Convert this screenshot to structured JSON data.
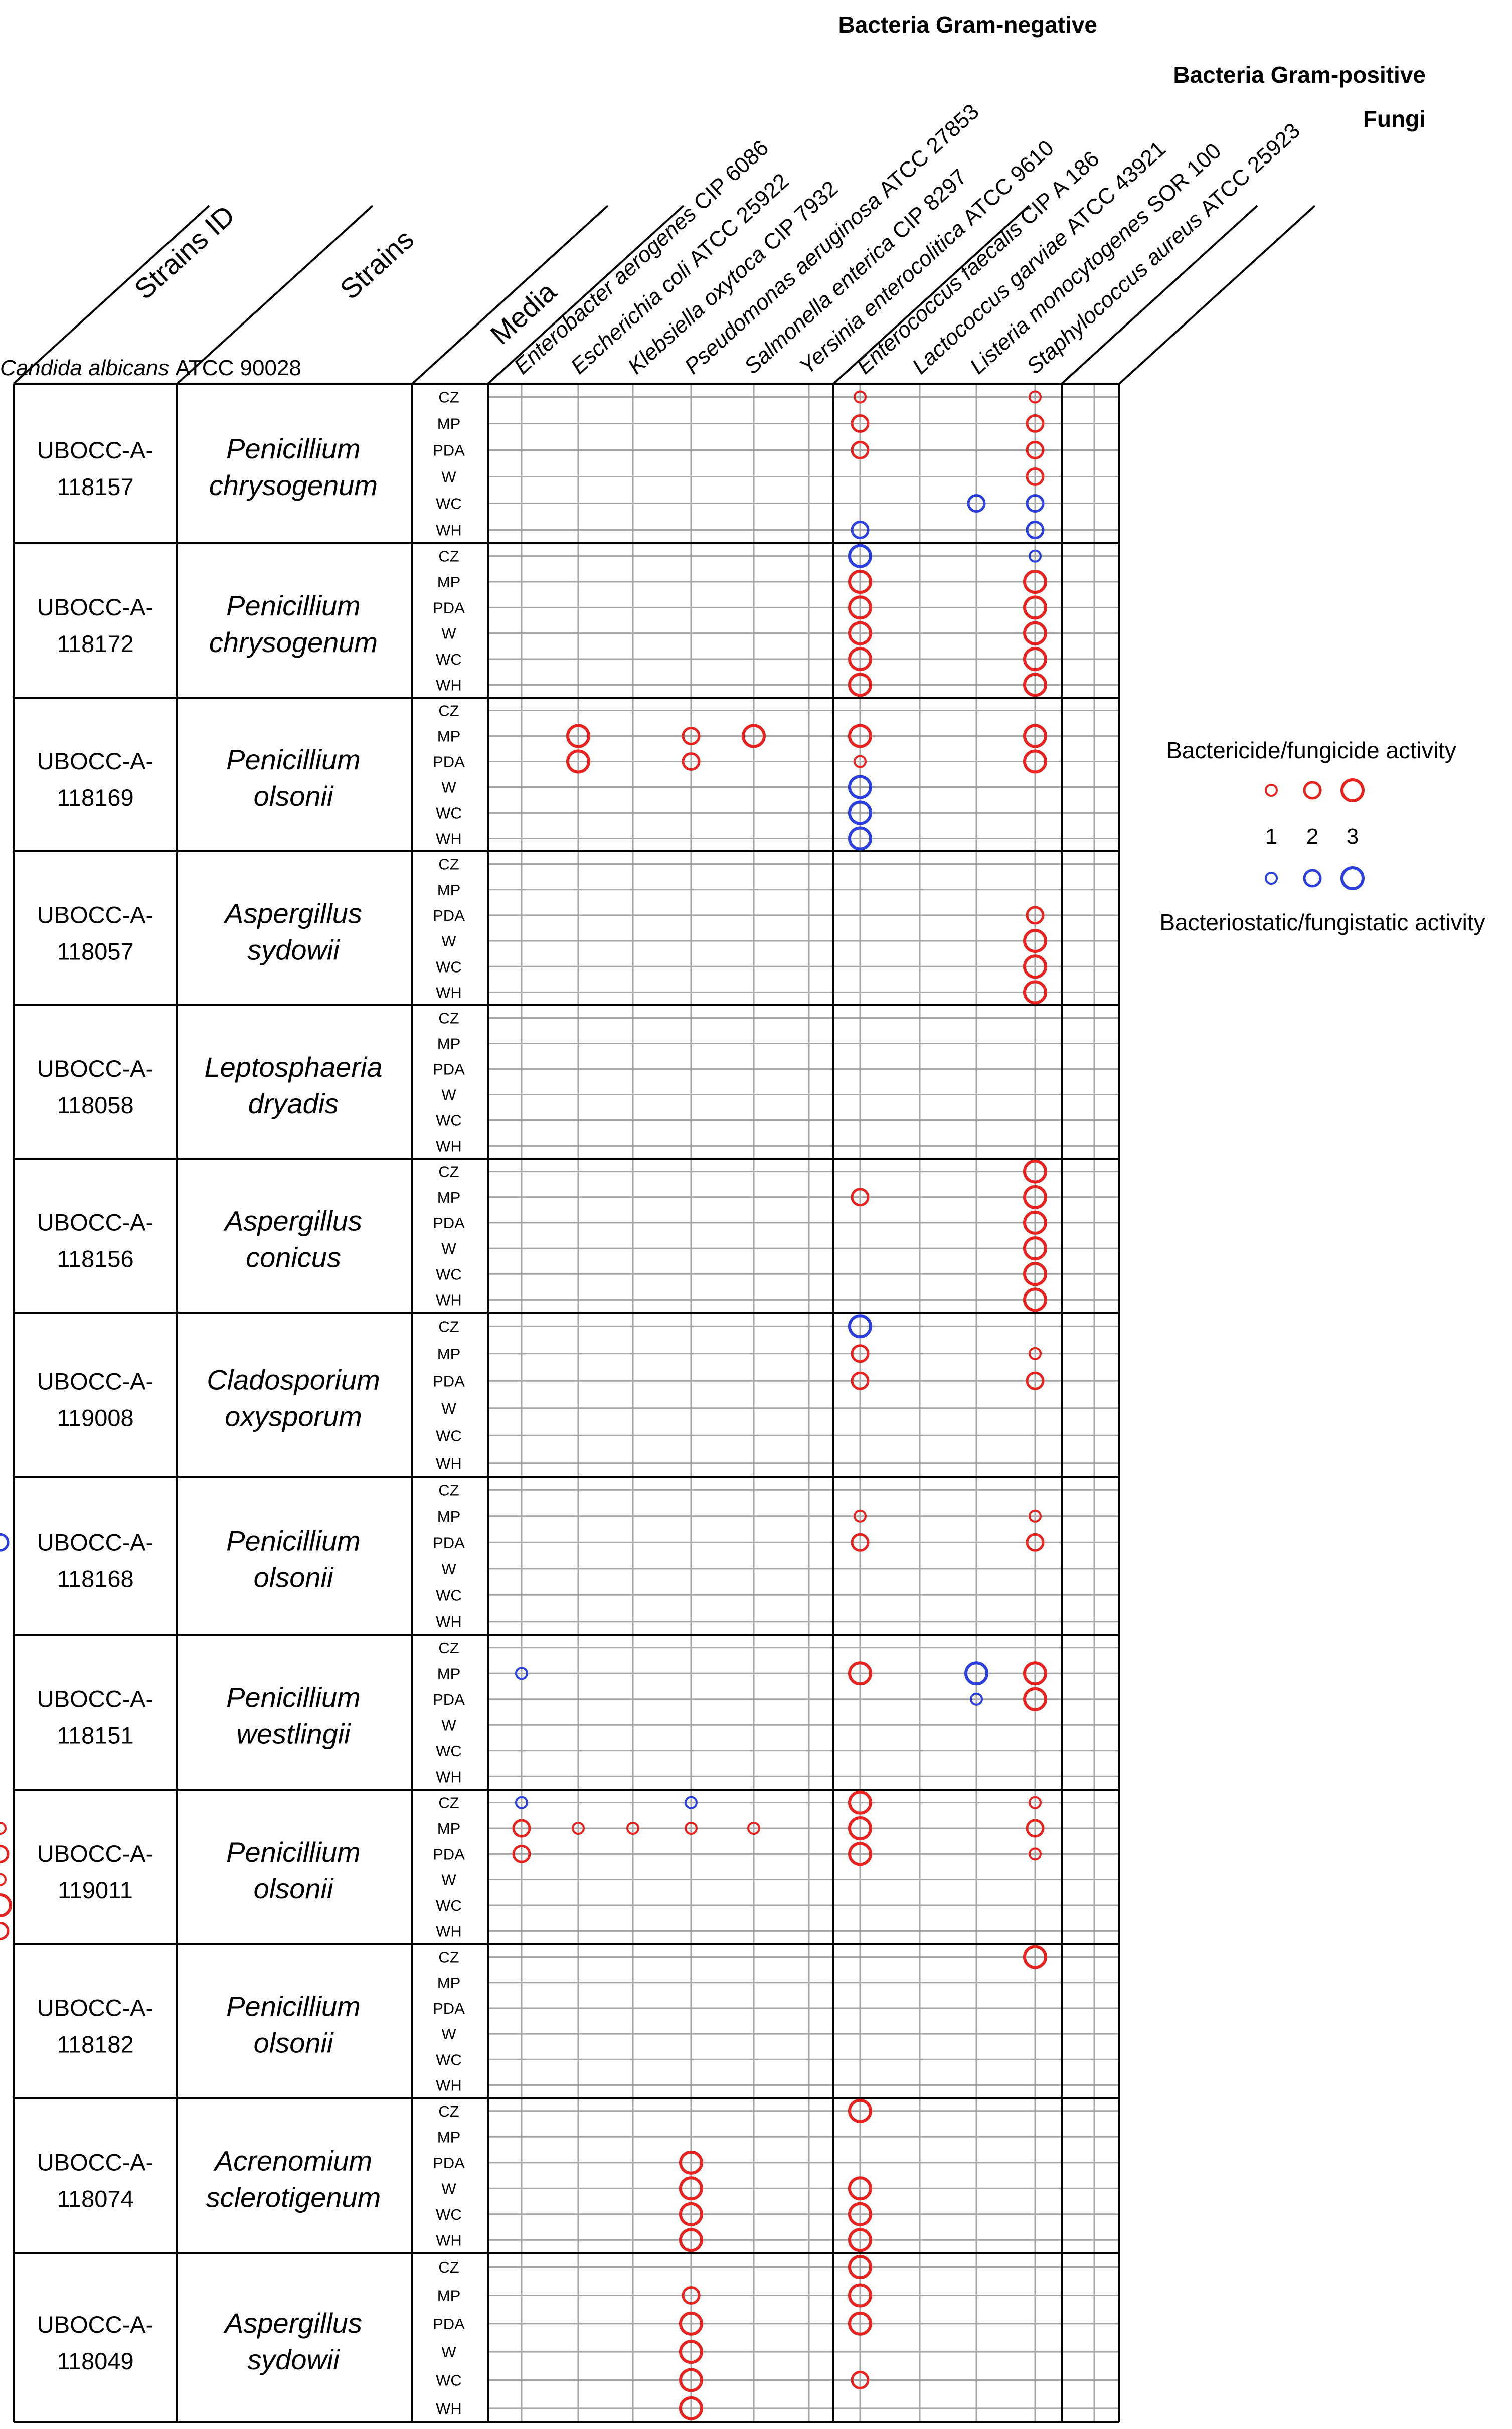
{
  "chart_data": {
    "type": "bubble-matrix",
    "groups": [
      {
        "label": "Bacteria Gram-negative",
        "columns": [
          0,
          1,
          2,
          3,
          4,
          5
        ]
      },
      {
        "label": "Bacteria Gram-positive",
        "columns": [
          6,
          7,
          8,
          9,
          10
        ]
      },
      {
        "label": "Fungi",
        "columns": [
          11
        ]
      }
    ],
    "header_labels": {
      "strain_id": "Strains ID",
      "strain": "Strains",
      "media": "Media"
    },
    "target_species": [
      {
        "genus": "Enterobacter aerogenes",
        "code": "CIP 6086"
      },
      {
        "genus": "Escherichia coli",
        "code": "ATCC 25922"
      },
      {
        "genus": "Klebsiella oxytoca",
        "code": "CIP 7932"
      },
      {
        "genus": "Pseudomonas aeruginosa",
        "code": "ATCC 27853"
      },
      {
        "genus": "Salmonella enterica",
        "code": "CIP 8297"
      },
      {
        "genus": "Yersinia enterocolitica",
        "code": "ATCC 9610"
      },
      {
        "genus": "Enterococcus faecalis",
        "code": "CIP A 186"
      },
      {
        "genus": "Lactococcus garviae",
        "code": "ATCC 43921"
      },
      {
        "genus": "Listeria monocytogenes",
        "code": "SOR 100"
      },
      {
        "genus": "Staphylococcus aureus",
        "code": "ATCC 25923"
      },
      {
        "genus": "Candida albicans",
        "code": "ATCC 90028"
      }
    ],
    "column_target_index": [
      0,
      1,
      2,
      3,
      4,
      5,
      6,
      7,
      8,
      9,
      null,
      10
    ],
    "media": [
      "CZ",
      "MP",
      "PDA",
      "W",
      "WC",
      "WH"
    ],
    "legend": {
      "title_cide": "Bactericide/fungicide activity",
      "title_static": "Bacteriostatic/fungistatic activity",
      "levels": [
        "1",
        "2",
        "3"
      ],
      "colors": {
        "cide": "#e8221f",
        "static": "#2b3ee0"
      }
    },
    "strains": [
      {
        "id_prefix": "UBOCC-A-",
        "id_number": "118157",
        "genus": "Penicillium",
        "species": "chrysogenum",
        "points": [
          [
            0,
            6,
            "c",
            1
          ],
          [
            0,
            9,
            "c",
            1
          ],
          [
            1,
            6,
            "c",
            2
          ],
          [
            1,
            9,
            "c",
            2
          ],
          [
            2,
            6,
            "c",
            2
          ],
          [
            2,
            9,
            "c",
            2
          ],
          [
            3,
            9,
            "c",
            2
          ],
          [
            4,
            8,
            "s",
            2
          ],
          [
            4,
            9,
            "s",
            2
          ],
          [
            5,
            6,
            "s",
            2
          ],
          [
            5,
            9,
            "s",
            2
          ]
        ]
      },
      {
        "id_prefix": "UBOCC-A-",
        "id_number": "118172",
        "genus": "Penicillium",
        "species": "chrysogenum",
        "points": [
          [
            0,
            6,
            "s",
            3
          ],
          [
            0,
            9,
            "s",
            1
          ],
          [
            1,
            6,
            "c",
            3
          ],
          [
            1,
            9,
            "c",
            3
          ],
          [
            2,
            6,
            "c",
            3
          ],
          [
            2,
            9,
            "c",
            3
          ],
          [
            3,
            6,
            "c",
            3
          ],
          [
            3,
            9,
            "c",
            3
          ],
          [
            4,
            6,
            "c",
            3
          ],
          [
            4,
            9,
            "c",
            3
          ],
          [
            5,
            6,
            "c",
            3
          ],
          [
            5,
            9,
            "c",
            3
          ]
        ]
      },
      {
        "id_prefix": "UBOCC-A-",
        "id_number": "118169",
        "genus": "Penicillium",
        "species": "olsonii",
        "points": [
          [
            1,
            1,
            "c",
            3
          ],
          [
            1,
            3,
            "c",
            2
          ],
          [
            1,
            4,
            "c",
            3
          ],
          [
            1,
            6,
            "c",
            3
          ],
          [
            1,
            9,
            "c",
            3
          ],
          [
            2,
            1,
            "c",
            3
          ],
          [
            2,
            3,
            "c",
            2
          ],
          [
            2,
            6,
            "c",
            1
          ],
          [
            2,
            9,
            "c",
            3
          ],
          [
            3,
            6,
            "s",
            3
          ],
          [
            4,
            6,
            "s",
            3
          ],
          [
            5,
            6,
            "s",
            3
          ]
        ]
      },
      {
        "id_prefix": "UBOCC-A-",
        "id_number": "118057",
        "genus": "Aspergillus",
        "species": "sydowii",
        "points": [
          [
            2,
            9,
            "c",
            2
          ],
          [
            3,
            9,
            "c",
            3
          ],
          [
            4,
            9,
            "c",
            3
          ],
          [
            5,
            9,
            "c",
            3
          ]
        ]
      },
      {
        "id_prefix": "UBOCC-A-",
        "id_number": "118058",
        "genus": "Leptosphaeria",
        "species": "dryadis",
        "points": []
      },
      {
        "id_prefix": "UBOCC-A-",
        "id_number": "118156",
        "genus": "Aspergillus",
        "species": "conicus",
        "points": [
          [
            0,
            9,
            "c",
            3
          ],
          [
            1,
            6,
            "c",
            2
          ],
          [
            1,
            9,
            "c",
            3
          ],
          [
            2,
            9,
            "c",
            3
          ],
          [
            3,
            9,
            "c",
            3
          ],
          [
            4,
            9,
            "c",
            3
          ],
          [
            5,
            9,
            "c",
            3
          ]
        ]
      },
      {
        "id_prefix": "UBOCC-A-",
        "id_number": "119008",
        "genus": "Cladosporium",
        "species": "oxysporum",
        "points": [
          [
            0,
            6,
            "s",
            3
          ],
          [
            1,
            6,
            "c",
            2
          ],
          [
            1,
            9,
            "c",
            1
          ],
          [
            2,
            6,
            "c",
            2
          ],
          [
            2,
            9,
            "c",
            2
          ]
        ]
      },
      {
        "id_prefix": "UBOCC-A-",
        "id_number": "118168",
        "genus": "Penicillium",
        "species": "olsonii",
        "points": [
          [
            1,
            6,
            "c",
            1
          ],
          [
            1,
            9,
            "c",
            1
          ],
          [
            2,
            6,
            "c",
            2
          ],
          [
            2,
            9,
            "c",
            2
          ],
          [
            2,
            11,
            "s",
            2
          ]
        ]
      },
      {
        "id_prefix": "UBOCC-A-",
        "id_number": "118151",
        "genus": "Penicillium",
        "species": "westlingii",
        "points": [
          [
            1,
            0,
            "s",
            1
          ],
          [
            1,
            6,
            "c",
            3
          ],
          [
            1,
            8,
            "s",
            3
          ],
          [
            1,
            9,
            "c",
            3
          ],
          [
            2,
            8,
            "s",
            1
          ],
          [
            2,
            9,
            "c",
            3
          ]
        ]
      },
      {
        "id_prefix": "UBOCC-A-",
        "id_number": "119011",
        "genus": "Penicillium",
        "species": "olsonii",
        "points": [
          [
            0,
            0,
            "s",
            1
          ],
          [
            0,
            3,
            "s",
            1
          ],
          [
            0,
            6,
            "c",
            3
          ],
          [
            0,
            9,
            "c",
            1
          ],
          [
            1,
            0,
            "c",
            2
          ],
          [
            1,
            1,
            "c",
            1
          ],
          [
            1,
            2,
            "c",
            1
          ],
          [
            1,
            3,
            "c",
            1
          ],
          [
            1,
            4,
            "c",
            1
          ],
          [
            1,
            6,
            "c",
            3
          ],
          [
            1,
            9,
            "c",
            2
          ],
          [
            1,
            11,
            "c",
            1
          ],
          [
            2,
            0,
            "c",
            2
          ],
          [
            2,
            6,
            "c",
            3
          ],
          [
            2,
            9,
            "c",
            1
          ],
          [
            2,
            11,
            "c",
            2
          ],
          [
            3,
            11,
            "c",
            1
          ],
          [
            4,
            11,
            "c",
            3
          ],
          [
            5,
            11,
            "c",
            2
          ]
        ]
      },
      {
        "id_prefix": "UBOCC-A-",
        "id_number": "118182",
        "genus": "Penicillium",
        "species": "olsonii",
        "points": [
          [
            0,
            9,
            "c",
            3
          ]
        ]
      },
      {
        "id_prefix": "UBOCC-A-",
        "id_number": "118074",
        "genus": "Acrenomium",
        "species": "sclerotigenum",
        "points": [
          [
            0,
            6,
            "c",
            3
          ],
          [
            2,
            3,
            "c",
            3
          ],
          [
            3,
            3,
            "c",
            3
          ],
          [
            3,
            6,
            "c",
            3
          ],
          [
            4,
            3,
            "c",
            3
          ],
          [
            4,
            6,
            "c",
            3
          ],
          [
            5,
            3,
            "c",
            3
          ],
          [
            5,
            6,
            "c",
            3
          ]
        ]
      },
      {
        "id_prefix": "UBOCC-A-",
        "id_number": "118049",
        "genus": "Aspergillus",
        "species": "sydowii",
        "points": [
          [
            0,
            6,
            "c",
            3
          ],
          [
            1,
            3,
            "c",
            2
          ],
          [
            1,
            6,
            "c",
            3
          ],
          [
            2,
            3,
            "c",
            3
          ],
          [
            2,
            6,
            "c",
            3
          ],
          [
            3,
            3,
            "c",
            3
          ],
          [
            4,
            3,
            "c",
            3
          ],
          [
            4,
            6,
            "c",
            2
          ],
          [
            5,
            3,
            "c",
            3
          ]
        ]
      }
    ]
  }
}
